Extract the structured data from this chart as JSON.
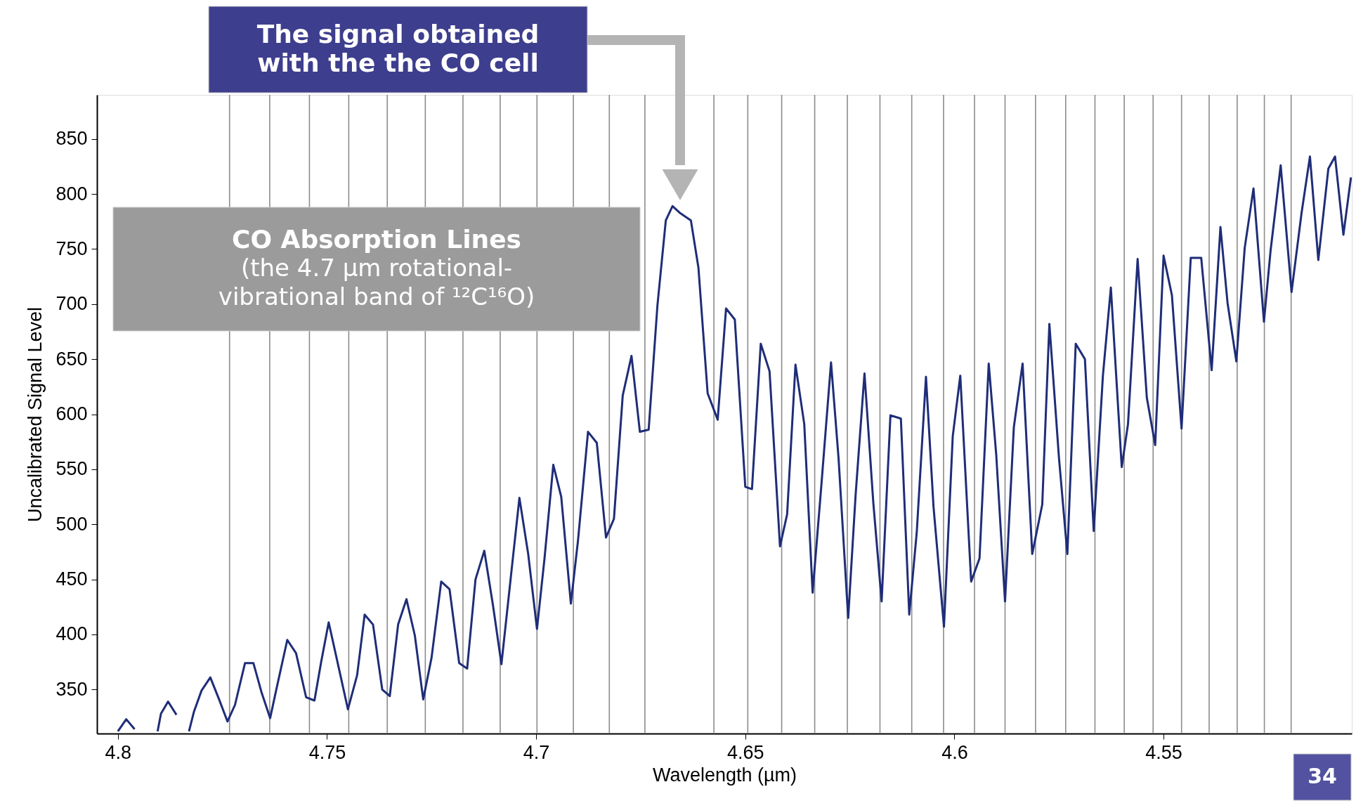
{
  "chart_data": {
    "type": "line",
    "xlabel": "Wavelength (µm)",
    "ylabel": "Uncalibrated Signal Level",
    "xlim": [
      4.805,
      4.505
    ],
    "ylim": [
      310,
      890
    ],
    "xticks": [
      4.8,
      4.75,
      4.7,
      4.65,
      4.6,
      4.55
    ],
    "yticks": [
      350,
      400,
      450,
      500,
      550,
      600,
      650,
      700,
      750,
      800,
      850
    ],
    "grid": false,
    "marker": "none",
    "line_style": "solid",
    "series": [
      {
        "color": "#1f2d78",
        "x": [
          4.8,
          4.798,
          4.796,
          4.7935,
          4.7905,
          4.7897,
          4.788,
          4.786,
          4.7845,
          4.783,
          4.7818,
          4.78,
          4.7779,
          4.7758,
          4.7738,
          4.772,
          4.7696,
          4.7676,
          4.7657,
          4.7636,
          4.762,
          4.7595,
          4.7574,
          4.755,
          4.753,
          4.7514,
          4.7496,
          4.7475,
          4.745,
          4.7428,
          4.741,
          4.739,
          4.7368,
          4.735,
          4.733,
          4.731,
          4.729,
          4.727,
          4.725,
          4.7227,
          4.7207,
          4.7184,
          4.7165,
          4.7145,
          4.7124,
          4.7103,
          4.7083,
          4.706,
          4.704,
          4.7019,
          4.6998,
          4.698,
          4.6959,
          4.694,
          4.6917,
          4.69,
          4.6876,
          4.6855,
          4.6833,
          4.6814,
          4.6793,
          4.6772,
          4.6752,
          4.6731,
          4.671,
          4.669,
          4.6674,
          4.6657,
          4.663,
          4.6612,
          4.659,
          4.6566,
          4.6546,
          4.6525,
          4.65,
          4.6484,
          4.6463,
          4.6442,
          4.6417,
          4.64,
          4.638,
          4.6359,
          4.6339,
          4.6318,
          4.6295,
          4.6277,
          4.6254,
          4.6236,
          4.6215,
          4.6194,
          4.6174,
          4.6153,
          4.6128,
          4.6108,
          4.609,
          4.6068,
          4.605,
          4.6025,
          4.6004,
          4.5986,
          4.596,
          4.594,
          4.5918,
          4.59,
          4.5879,
          4.5858,
          4.5837,
          4.5814,
          4.579,
          4.5773,
          4.575,
          4.573,
          4.571,
          4.5688,
          4.5667,
          4.5645,
          4.5626,
          4.56,
          4.5585,
          4.5562,
          4.554,
          4.552,
          4.55,
          4.548,
          4.5457,
          4.5435,
          4.541,
          4.5385,
          4.5364,
          4.5347,
          4.5326,
          4.5306,
          4.5285,
          4.526,
          4.5244,
          4.522,
          4.5194,
          4.517,
          4.515,
          4.513,
          4.5106,
          4.509,
          4.507,
          4.5052
        ],
        "values": [
          312,
          323,
          314,
          null,
          312,
          328,
          339,
          327,
          null,
          312,
          330,
          349,
          361,
          341,
          321,
          336,
          374,
          374,
          348,
          324,
          352,
          395,
          383,
          343,
          340,
          375,
          411,
          375,
          332,
          363,
          418,
          409,
          350,
          344,
          409,
          432,
          399,
          341,
          379,
          448,
          441,
          374,
          369,
          450,
          476,
          426,
          373,
          454,
          524,
          473,
          405,
          469,
          554,
          525,
          428,
          485,
          584,
          574,
          488,
          505,
          617,
          653,
          584,
          586,
          699,
          776,
          789,
          783,
          776,
          733,
          619,
          595,
          696,
          686,
          534,
          532,
          664,
          639,
          480,
          509,
          645,
          591,
          438,
          536,
          647,
          560,
          415,
          528,
          637,
          520,
          430,
          599,
          596,
          418,
          493,
          634,
          516,
          407,
          580,
          635,
          448,
          469,
          646,
          563,
          430,
          588,
          646,
          473,
          518,
          682,
          560,
          473,
          664,
          650,
          494,
          635,
          715,
          552,
          591,
          741,
          615,
          572,
          744,
          708,
          587,
          742,
          742,
          640,
          770,
          701,
          648,
          751,
          805,
          684,
          749,
          826,
          711,
          783,
          834,
          740,
          823,
          834,
          763,
          815
        ]
      }
    ],
    "ref_lines": [
      {
        "axis": "x",
        "value": 4.7733,
        "color": "#8c8c8c"
      },
      {
        "axis": "x",
        "value": 4.7637,
        "color": "#8c8c8c"
      },
      {
        "axis": "x",
        "value": 4.7542,
        "color": "#8c8c8c"
      },
      {
        "axis": "x",
        "value": 4.7448,
        "color": "#8c8c8c"
      },
      {
        "axis": "x",
        "value": 4.7356,
        "color": "#8c8c8c"
      },
      {
        "axis": "x",
        "value": 4.7265,
        "color": "#8c8c8c"
      },
      {
        "axis": "x",
        "value": 4.7175,
        "color": "#8c8c8c"
      },
      {
        "axis": "x",
        "value": 4.7086,
        "color": "#8c8c8c"
      },
      {
        "axis": "x",
        "value": 4.6998,
        "color": "#8c8c8c"
      },
      {
        "axis": "x",
        "value": 4.6911,
        "color": "#8c8c8c"
      },
      {
        "axis": "x",
        "value": 4.6825,
        "color": "#8c8c8c"
      },
      {
        "axis": "x",
        "value": 4.674,
        "color": "#8c8c8c"
      },
      {
        "axis": "x",
        "value": 4.6575,
        "color": "#8c8c8c"
      },
      {
        "axis": "x",
        "value": 4.6494,
        "color": "#8c8c8c"
      },
      {
        "axis": "x",
        "value": 4.6413,
        "color": "#8c8c8c"
      },
      {
        "axis": "x",
        "value": 4.6334,
        "color": "#8c8c8c"
      },
      {
        "axis": "x",
        "value": 4.6256,
        "color": "#8c8c8c"
      },
      {
        "axis": "x",
        "value": 4.6178,
        "color": "#8c8c8c"
      },
      {
        "axis": "x",
        "value": 4.6102,
        "color": "#8c8c8c"
      },
      {
        "axis": "x",
        "value": 4.6026,
        "color": "#8c8c8c"
      },
      {
        "axis": "x",
        "value": 4.5952,
        "color": "#8c8c8c"
      },
      {
        "axis": "x",
        "value": 4.5879,
        "color": "#8c8c8c"
      },
      {
        "axis": "x",
        "value": 4.5806,
        "color": "#8c8c8c"
      },
      {
        "axis": "x",
        "value": 4.5734,
        "color": "#8c8c8c"
      },
      {
        "axis": "x",
        "value": 4.5664,
        "color": "#8c8c8c"
      },
      {
        "axis": "x",
        "value": 4.5594,
        "color": "#8c8c8c"
      },
      {
        "axis": "x",
        "value": 4.5525,
        "color": "#8c8c8c"
      },
      {
        "axis": "x",
        "value": 4.5457,
        "color": "#8c8c8c"
      },
      {
        "axis": "x",
        "value": 4.5391,
        "color": "#8c8c8c"
      },
      {
        "axis": "x",
        "value": 4.5324,
        "color": "#8c8c8c"
      },
      {
        "axis": "x",
        "value": 4.5259,
        "color": "#8c8c8c"
      },
      {
        "axis": "x",
        "value": 4.5195,
        "color": "#8c8c8c"
      }
    ],
    "annotations": [
      "The signal obtained\nwith the the CO cell",
      "CO Absorption Lines\n(the 4.7 µm rotational-\nvibrational band of ¹²C¹⁶O)",
      "34"
    ]
  }
}
